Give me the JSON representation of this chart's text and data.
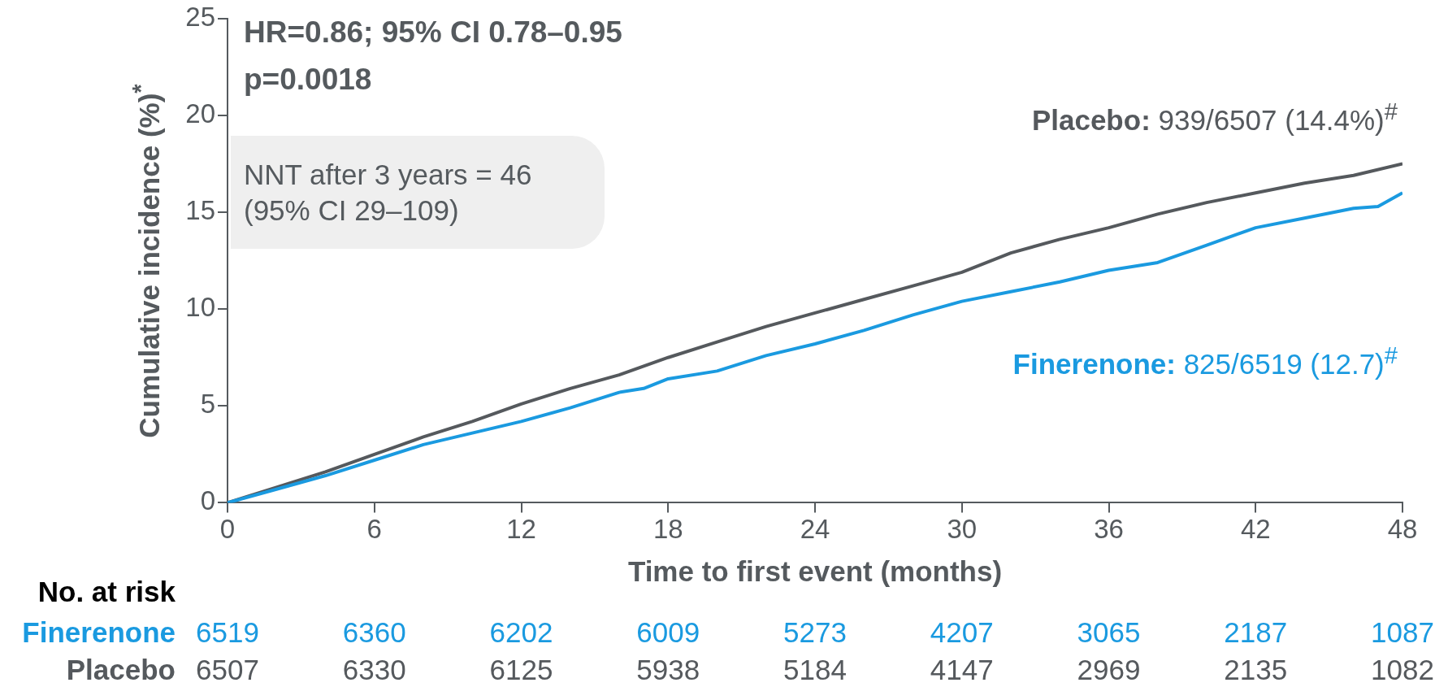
{
  "chart_data": {
    "type": "line",
    "xlabel": "Time to first event (months)",
    "ylabel": "Cumulative incidence (%)$^{*}$",
    "xlim": [
      0,
      48
    ],
    "xticks": [
      0,
      6,
      12,
      18,
      24,
      30,
      36,
      42,
      48
    ],
    "ylim": [
      0,
      25
    ],
    "yticks": [
      0,
      5,
      10,
      15,
      20,
      25
    ],
    "grid": false,
    "legend": false,
    "marker": "none",
    "line_style": "solid",
    "series": [
      {
        "name": "Finerenone",
        "color": "#1a9ae0",
        "x": [
          0,
          2,
          4,
          6,
          8,
          10,
          12,
          14,
          16,
          17,
          18,
          20,
          22,
          24,
          26,
          28,
          30,
          32,
          34,
          36,
          38,
          40,
          42,
          44,
          46,
          47,
          48
        ],
        "values": [
          0,
          0.7,
          1.4,
          2.2,
          3.0,
          3.6,
          4.2,
          4.9,
          5.7,
          5.9,
          6.4,
          6.8,
          7.6,
          8.2,
          8.9,
          9.7,
          10.4,
          10.9,
          11.4,
          12.0,
          12.4,
          13.3,
          14.2,
          14.7,
          15.2,
          15.3,
          16.0
        ]
      },
      {
        "name": "Placebo",
        "color": "#55595d",
        "x": [
          0,
          2,
          4,
          6,
          8,
          10,
          12,
          14,
          16,
          18,
          20,
          22,
          24,
          26,
          28,
          30,
          32,
          34,
          36,
          38,
          40,
          42,
          44,
          46,
          48
        ],
        "values": [
          0,
          0.8,
          1.6,
          2.5,
          3.4,
          4.2,
          5.1,
          5.9,
          6.6,
          7.5,
          8.3,
          9.1,
          9.8,
          10.5,
          11.2,
          11.9,
          12.9,
          13.6,
          14.2,
          14.9,
          15.5,
          16.0,
          16.5,
          16.9,
          17.5
        ]
      }
    ],
    "annotations": [
      "HR=0.86; 95% CI 0.78–0.95",
      "p=0.0018",
      "NNT after 3 years = 46",
      "(95% CI 29–109)",
      "Finerenone:",
      "825/6519 (12.7)$^{#}$",
      "Placebo:",
      "939/6507 (14.4%)$^{#}$",
      "No. at risk",
      "6519",
      "6360",
      "6202",
      "6009",
      "5273",
      "4207",
      "3065",
      "2187",
      "1087",
      "6507",
      "6330",
      "6125",
      "5938",
      "5184",
      "4147",
      "2969",
      "2135",
      "1082"
    ]
  }
}
